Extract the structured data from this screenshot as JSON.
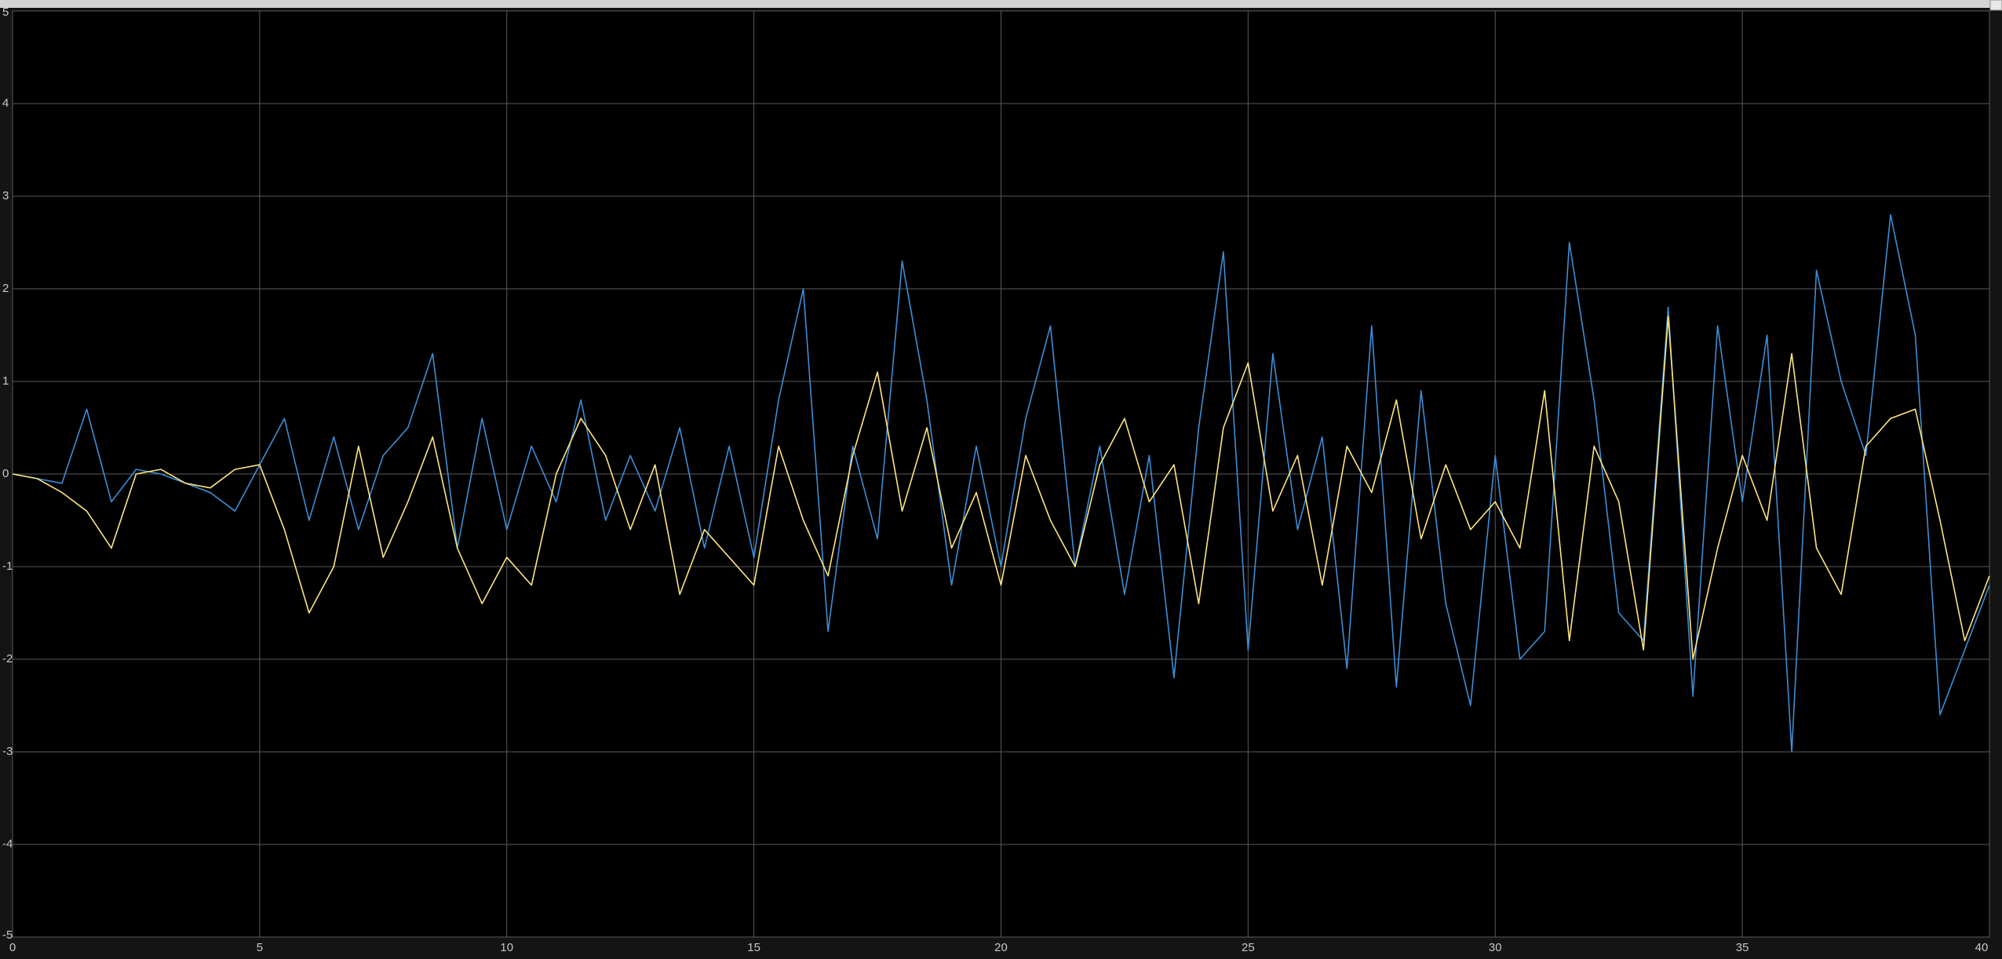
{
  "chart_data": {
    "type": "line",
    "x": [
      0,
      0.5,
      1,
      1.5,
      2,
      2.5,
      3,
      3.5,
      4,
      4.5,
      5,
      5.5,
      6,
      6.5,
      7,
      7.5,
      8,
      8.5,
      9,
      9.5,
      10,
      10.5,
      11,
      11.5,
      12,
      12.5,
      13,
      13.5,
      14,
      14.5,
      15,
      15.5,
      16,
      16.5,
      17,
      17.5,
      18,
      18.5,
      19,
      19.5,
      20,
      20.5,
      21,
      21.5,
      22,
      22.5,
      23,
      23.5,
      24,
      24.5,
      25,
      25.5,
      26,
      26.5,
      27,
      27.5,
      28,
      28.5,
      29,
      29.5,
      30,
      30.5,
      31,
      31.5,
      32,
      32.5,
      33,
      33.5,
      34,
      34.5,
      35,
      35.5,
      36,
      36.5,
      37,
      37.5,
      38,
      38.5,
      39,
      39.5,
      40
    ],
    "series": [
      {
        "color": "#3d8ed6",
        "values": [
          0,
          -0.05,
          -0.1,
          0.7,
          -0.3,
          0.05,
          0,
          -0.1,
          -0.2,
          -0.4,
          0.1,
          0.6,
          -0.5,
          0.4,
          -0.6,
          0.2,
          0.5,
          1.3,
          -0.8,
          0.6,
          -0.6,
          0.3,
          -0.3,
          0.8,
          -0.5,
          0.2,
          -0.4,
          0.5,
          -0.8,
          0.3,
          -0.9,
          0.8,
          2,
          -1.7,
          0.3,
          -0.7,
          2.3,
          0.8,
          -1.2,
          0.3,
          -1,
          0.6,
          1.6,
          -1,
          0.3,
          -1.3,
          0.2,
          -2.2,
          0.5,
          2.4,
          -1.9,
          1.3,
          -0.6,
          0.4,
          -2.1,
          1.6,
          -2.3,
          0.9,
          -1.4,
          -2.5,
          0.2,
          -2,
          -1.7,
          2.5,
          0.8,
          -1.5,
          -1.8,
          1.8,
          -2.4,
          1.6,
          -0.3,
          1.5,
          -3,
          2.2,
          1,
          0.2,
          2.8,
          1.5,
          -2.6,
          -1.9,
          -1.2
        ]
      },
      {
        "color": "#ffe57f",
        "values": [
          0,
          -0.05,
          -0.2,
          -0.4,
          -0.8,
          0,
          0.05,
          -0.1,
          -0.15,
          0.05,
          0.1,
          -0.6,
          -1.5,
          -1,
          0.3,
          -0.9,
          -0.3,
          0.4,
          -0.8,
          -1.4,
          -0.9,
          -1.2,
          0,
          0.6,
          0.2,
          -0.6,
          0.1,
          -1.3,
          -0.6,
          -0.9,
          -1.2,
          0.3,
          -0.5,
          -1.1,
          0.2,
          1.1,
          -0.4,
          0.5,
          -0.8,
          -0.2,
          -1.2,
          0.2,
          -0.5,
          -1,
          0.1,
          0.6,
          -0.3,
          0.1,
          -1.4,
          0.5,
          1.2,
          -0.4,
          0.2,
          -1.2,
          0.3,
          -0.2,
          0.8,
          -0.7,
          0.1,
          -0.6,
          -0.3,
          -0.8,
          0.9,
          -1.8,
          0.3,
          -0.3,
          -1.9,
          1.7,
          -2,
          -0.8,
          0.2,
          -0.5,
          1.3,
          -0.8,
          -1.3,
          0.3,
          0.6,
          0.7,
          -0.5,
          -1.8,
          -1.1
        ]
      }
    ],
    "xlim": [
      0,
      40
    ],
    "ylim": [
      -5,
      5
    ],
    "xticks": [
      0,
      5,
      10,
      15,
      20,
      25,
      30,
      35,
      40
    ],
    "yticks": [
      -5,
      -4,
      -3,
      -2,
      -1,
      0,
      1,
      2,
      3,
      4,
      5
    ],
    "grid": true
  }
}
